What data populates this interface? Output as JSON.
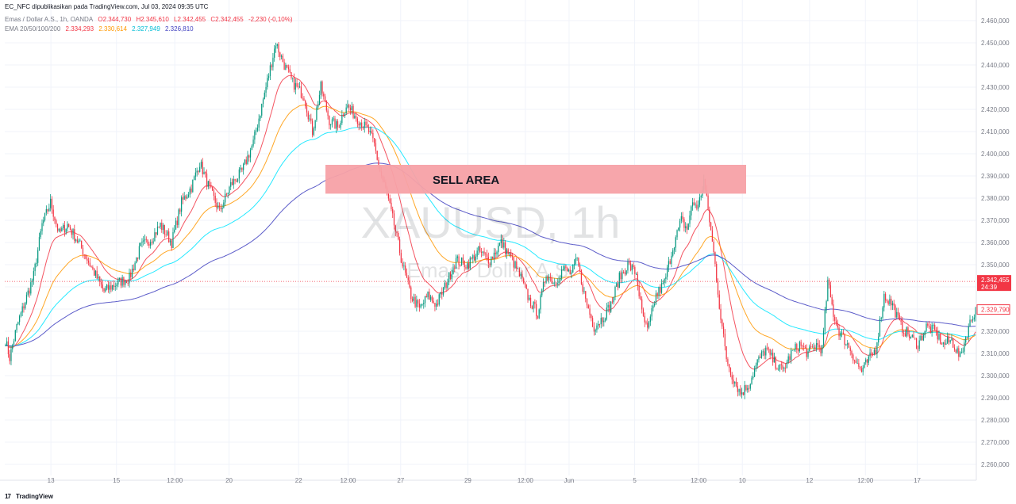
{
  "header": {
    "publish_line": "EC_NFC dipublikasikan pada TradingView.com, Jul 03, 2024 09:35 UTC",
    "symbol_line": "Emas / Dollar A.S., 1h, OANDA",
    "ohlc": {
      "o": "O2.344,730",
      "h": "H2.345,610",
      "l": "L2.342,455",
      "c": "C2.342,455",
      "change": "-2,230 (-0,10%)"
    },
    "ema_label": "EMA 20/50/100/200",
    "ema_values": {
      "ema20": "2.334,293",
      "ema50": "2.330,614",
      "ema100": "2.327,949",
      "ema200": "2.326,810"
    }
  },
  "watermark": {
    "symbol": "XAUUSD, 1h",
    "name": "Emas / Dollar A.S."
  },
  "logo_text": "TradingView",
  "colors": {
    "up": "#089981",
    "down": "#f23645",
    "ema20": "#f23645",
    "ema50": "#ff9800",
    "ema100": "#00e5ff",
    "ema200": "#3f3fbf",
    "zone": "#f7a1a6"
  },
  "chart_data": {
    "type": "candlestick",
    "annotations": [
      {
        "text": "SELL AREA",
        "y_range": [
          2382,
          2395
        ],
        "x_range": [
          "May 22",
          "Jun 9"
        ]
      }
    ],
    "ylim": [
      2255,
      2465
    ],
    "y_ticks": [
      "2.460,000",
      "2.450,000",
      "2.440,000",
      "2.430,000",
      "2.420,000",
      "2.410,000",
      "2.400,000",
      "2.390,000",
      "2.380,000",
      "2.370,000",
      "2.360,000",
      "2.350,000",
      "2.340,000",
      "2.330,000",
      "2.320,000",
      "2.310,000",
      "2.300,000",
      "2.290,000",
      "2.280,000",
      "2.270,000",
      "2.260,000"
    ],
    "y_tick_values": [
      2460,
      2450,
      2440,
      2430,
      2420,
      2410,
      2400,
      2390,
      2380,
      2370,
      2360,
      2350,
      2340,
      2330,
      2320,
      2310,
      2300,
      2290,
      2280,
      2270,
      2260
    ],
    "x_ticks": [
      "13",
      "15",
      "12:00",
      "20",
      "22",
      "12:00",
      "27",
      "29",
      "12:00",
      "Jun",
      "5",
      "12:00",
      "10",
      "12",
      "12:00",
      "17"
    ],
    "x_tick_pos": [
      0.057,
      0.138,
      0.21,
      0.277,
      0.363,
      0.424,
      0.489,
      0.572,
      0.643,
      0.697,
      0.778,
      0.857,
      0.911,
      0.994,
      1.063,
      1.127
    ],
    "last_price": {
      "label": "2.342,455",
      "value": 2342.455,
      "countdown": "24:39"
    },
    "current_price": {
      "label": "2.329,790",
      "value": 2329.79
    },
    "path": [
      [
        0,
        2316
      ],
      [
        3,
        2308
      ],
      [
        8,
        2322
      ],
      [
        20,
        2345
      ],
      [
        26,
        2368
      ],
      [
        32,
        2378
      ],
      [
        38,
        2364
      ],
      [
        44,
        2368
      ],
      [
        52,
        2360
      ],
      [
        60,
        2350
      ],
      [
        70,
        2338
      ],
      [
        80,
        2342
      ],
      [
        88,
        2344
      ],
      [
        96,
        2358
      ],
      [
        104,
        2362
      ],
      [
        110,
        2368
      ],
      [
        118,
        2360
      ],
      [
        125,
        2378
      ],
      [
        132,
        2385
      ],
      [
        138,
        2396
      ],
      [
        145,
        2384
      ],
      [
        152,
        2374
      ],
      [
        160,
        2386
      ],
      [
        168,
        2392
      ],
      [
        176,
        2405
      ],
      [
        185,
        2430
      ],
      [
        192,
        2450
      ],
      [
        198,
        2440
      ],
      [
        204,
        2432
      ],
      [
        212,
        2426
      ],
      [
        218,
        2410
      ],
      [
        224,
        2430
      ],
      [
        230,
        2415
      ],
      [
        236,
        2412
      ],
      [
        242,
        2422
      ],
      [
        250,
        2416
      ],
      [
        258,
        2410
      ],
      [
        262,
        2404
      ],
      [
        266,
        2392
      ],
      [
        270,
        2384
      ],
      [
        276,
        2368
      ],
      [
        282,
        2350
      ],
      [
        288,
        2336
      ],
      [
        294,
        2330
      ],
      [
        300,
        2336
      ],
      [
        306,
        2332
      ],
      [
        312,
        2340
      ],
      [
        320,
        2352
      ],
      [
        328,
        2350
      ],
      [
        336,
        2356
      ],
      [
        344,
        2352
      ],
      [
        352,
        2360
      ],
      [
        360,
        2352
      ],
      [
        366,
        2344
      ],
      [
        372,
        2334
      ],
      [
        378,
        2328
      ],
      [
        384,
        2346
      ],
      [
        390,
        2342
      ],
      [
        396,
        2348
      ],
      [
        402,
        2346
      ],
      [
        406,
        2352
      ],
      [
        412,
        2334
      ],
      [
        418,
        2322
      ],
      [
        424,
        2326
      ],
      [
        430,
        2332
      ],
      [
        436,
        2344
      ],
      [
        442,
        2350
      ],
      [
        448,
        2346
      ],
      [
        452,
        2328
      ],
      [
        456,
        2320
      ],
      [
        462,
        2336
      ],
      [
        468,
        2342
      ],
      [
        474,
        2358
      ],
      [
        480,
        2370
      ],
      [
        484,
        2366
      ],
      [
        488,
        2378
      ],
      [
        492,
        2376
      ],
      [
        496,
        2388
      ],
      [
        500,
        2370
      ],
      [
        504,
        2350
      ],
      [
        508,
        2326
      ],
      [
        512,
        2308
      ],
      [
        516,
        2300
      ],
      [
        522,
        2292
      ],
      [
        528,
        2296
      ],
      [
        534,
        2306
      ],
      [
        540,
        2312
      ],
      [
        546,
        2306
      ],
      [
        552,
        2302
      ],
      [
        558,
        2310
      ],
      [
        564,
        2314
      ],
      [
        570,
        2310
      ],
      [
        576,
        2314
      ],
      [
        580,
        2312
      ],
      [
        584,
        2342
      ],
      [
        588,
        2328
      ],
      [
        592,
        2320
      ],
      [
        596,
        2316
      ],
      [
        600,
        2312
      ],
      [
        604,
        2306
      ],
      [
        608,
        2302
      ],
      [
        612,
        2306
      ],
      [
        618,
        2312
      ],
      [
        624,
        2336
      ],
      [
        630,
        2332
      ],
      [
        636,
        2322
      ],
      [
        642,
        2318
      ],
      [
        648,
        2314
      ],
      [
        654,
        2322
      ],
      [
        660,
        2320
      ],
      [
        666,
        2314
      ],
      [
        672,
        2316
      ],
      [
        678,
        2308
      ],
      [
        684,
        2322
      ],
      [
        689,
        2330
      ]
    ],
    "n_candles": 690
  }
}
